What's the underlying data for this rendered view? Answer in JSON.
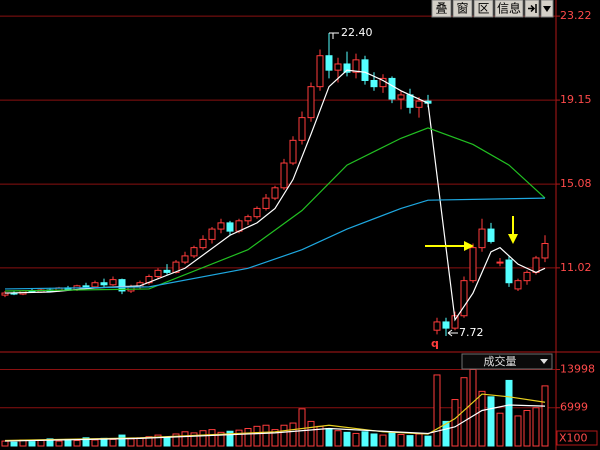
{
  "toolbar": [
    "叠",
    "窗",
    "区",
    "信息"
  ],
  "chart_data": [
    {
      "type": "candlestick",
      "ylim": [
        7.04,
        24.0
      ],
      "yticks": [
        23.22,
        19.15,
        15.08,
        11.02
      ],
      "grid": true,
      "up_color": "#ff3c3c",
      "down_color": "#54ffff",
      "open": [
        9.7,
        9.8,
        9.75,
        9.9,
        9.85,
        9.95,
        9.9,
        10.05,
        9.95,
        10.15,
        10.1,
        10.3,
        10.2,
        10.45,
        9.9,
        10.1,
        10.3,
        10.6,
        10.9,
        10.8,
        11.3,
        11.6,
        12.0,
        12.4,
        12.9,
        13.2,
        12.8,
        13.3,
        13.5,
        13.9,
        14.4,
        14.9,
        16.1,
        17.2,
        18.3,
        19.8,
        21.3,
        20.6,
        20.9,
        20.5,
        21.1,
        20.1,
        19.8,
        20.2,
        19.2,
        19.4,
        18.8,
        19.1,
        8.0,
        8.4,
        8.1,
        8.7,
        10.4,
        12.0,
        12.9,
        11.3,
        11.4,
        10.0,
        10.4,
        10.8,
        11.5
      ],
      "high": [
        9.9,
        9.9,
        9.95,
        10.0,
        10.0,
        10.05,
        10.1,
        10.15,
        10.2,
        10.3,
        10.4,
        10.5,
        10.6,
        10.5,
        10.2,
        10.4,
        10.7,
        11.0,
        11.2,
        11.4,
        11.8,
        12.1,
        12.6,
        13.0,
        13.4,
        13.3,
        13.4,
        13.6,
        14.0,
        14.6,
        15.0,
        16.3,
        17.4,
        18.6,
        20.0,
        21.6,
        22.4,
        21.2,
        21.5,
        21.4,
        21.3,
        20.5,
        20.4,
        20.3,
        19.6,
        19.7,
        19.3,
        19.4,
        8.6,
        8.6,
        8.9,
        10.6,
        12.2,
        13.4,
        13.2,
        11.5,
        11.6,
        10.5,
        10.9,
        11.6,
        12.6
      ],
      "low": [
        9.6,
        9.7,
        9.7,
        9.8,
        9.8,
        9.85,
        9.85,
        9.9,
        9.9,
        10.0,
        10.05,
        10.1,
        10.15,
        9.75,
        9.8,
        10.0,
        10.2,
        10.5,
        10.7,
        10.75,
        11.2,
        11.5,
        11.9,
        12.2,
        12.7,
        12.6,
        12.7,
        13.1,
        13.4,
        13.8,
        14.3,
        14.8,
        16.0,
        17.0,
        18.1,
        19.6,
        20.2,
        20.0,
        20.3,
        20.2,
        19.9,
        19.6,
        19.5,
        19.0,
        18.7,
        18.5,
        18.3,
        18.8,
        7.8,
        7.72,
        8.0,
        8.6,
        10.3,
        11.8,
        12.2,
        11.1,
        10.1,
        9.9,
        10.2,
        10.7,
        11.3
      ],
      "close": [
        9.8,
        9.75,
        9.9,
        9.85,
        9.95,
        9.9,
        10.05,
        9.95,
        10.15,
        10.1,
        10.3,
        10.2,
        10.45,
        9.9,
        10.1,
        10.3,
        10.6,
        10.9,
        10.8,
        11.3,
        11.6,
        12.0,
        12.4,
        12.9,
        13.2,
        12.8,
        13.3,
        13.5,
        13.9,
        14.4,
        14.9,
        16.1,
        17.2,
        18.3,
        19.8,
        21.3,
        20.6,
        20.9,
        20.5,
        21.1,
        20.1,
        19.8,
        20.2,
        19.2,
        19.4,
        18.8,
        19.1,
        19.0,
        8.4,
        8.1,
        8.7,
        10.4,
        12.0,
        12.9,
        12.3,
        11.3,
        10.3,
        10.4,
        10.8,
        11.5,
        12.2
      ],
      "max_label": "22.40",
      "min_label": "7.72",
      "marker": "q",
      "lines": [
        {
          "color": "#ffffff",
          "x": [
            0,
            5,
            10,
            15,
            20,
            25,
            28,
            30,
            32,
            34,
            36,
            38,
            40,
            42,
            44,
            46,
            47,
            50,
            52,
            54,
            55,
            57,
            59,
            60
          ],
          "values": [
            9.8,
            9.85,
            10.05,
            10.15,
            11.0,
            12.6,
            13.2,
            13.9,
            15.3,
            17.5,
            19.8,
            20.6,
            20.5,
            20.1,
            19.6,
            19.2,
            19.0,
            8.5,
            9.8,
            11.8,
            12.0,
            11.2,
            10.8,
            11.0
          ]
        },
        {
          "color": "#22c022",
          "x": [
            0,
            16,
            27,
            33,
            38,
            44,
            47,
            52,
            56,
            60
          ],
          "values": [
            9.9,
            10.0,
            11.9,
            13.8,
            16.0,
            17.3,
            17.8,
            17.0,
            16.0,
            14.4
          ]
        },
        {
          "color": "#1ea8e0",
          "x": [
            0,
            16,
            27,
            33,
            38,
            44,
            47,
            60
          ],
          "values": [
            10.0,
            10.1,
            11.0,
            11.9,
            12.9,
            13.9,
            14.3,
            14.4
          ]
        }
      ]
    },
    {
      "type": "bar",
      "title": "成交量",
      "ylim": [
        0,
        17200
      ],
      "yticks": [
        13998,
        6999
      ],
      "unit_label": "X100",
      "values": [
        900,
        700,
        1100,
        800,
        1000,
        1300,
        900,
        1200,
        1000,
        1500,
        1100,
        1400,
        1200,
        2000,
        1300,
        1500,
        1700,
        2000,
        1600,
        2200,
        2600,
        2400,
        2800,
        3000,
        2500,
        2700,
        2900,
        3200,
        3600,
        3800,
        3000,
        3800,
        4200,
        6800,
        4500,
        3600,
        3200,
        2800,
        2500,
        2300,
        2600,
        2200,
        2000,
        2400,
        2100,
        1900,
        2200,
        1800,
        13000,
        4500,
        8500,
        12500,
        14000,
        10000,
        9000,
        6000,
        12000,
        5500,
        6500,
        7000,
        11000
      ],
      "lines": [
        {
          "color": "#e8d020",
          "x": [
            0,
            15,
            30,
            36,
            42,
            47,
            50,
            53,
            56,
            60
          ],
          "values": [
            1000,
            1500,
            2600,
            3800,
            2600,
            2200,
            5000,
            9500,
            9000,
            8000
          ]
        },
        {
          "color": "#ffffff",
          "x": [
            0,
            15,
            30,
            36,
            42,
            47,
            50,
            53,
            56,
            60
          ],
          "values": [
            900,
            1400,
            2400,
            3200,
            2700,
            2300,
            3500,
            6500,
            7500,
            7300
          ]
        }
      ]
    }
  ]
}
